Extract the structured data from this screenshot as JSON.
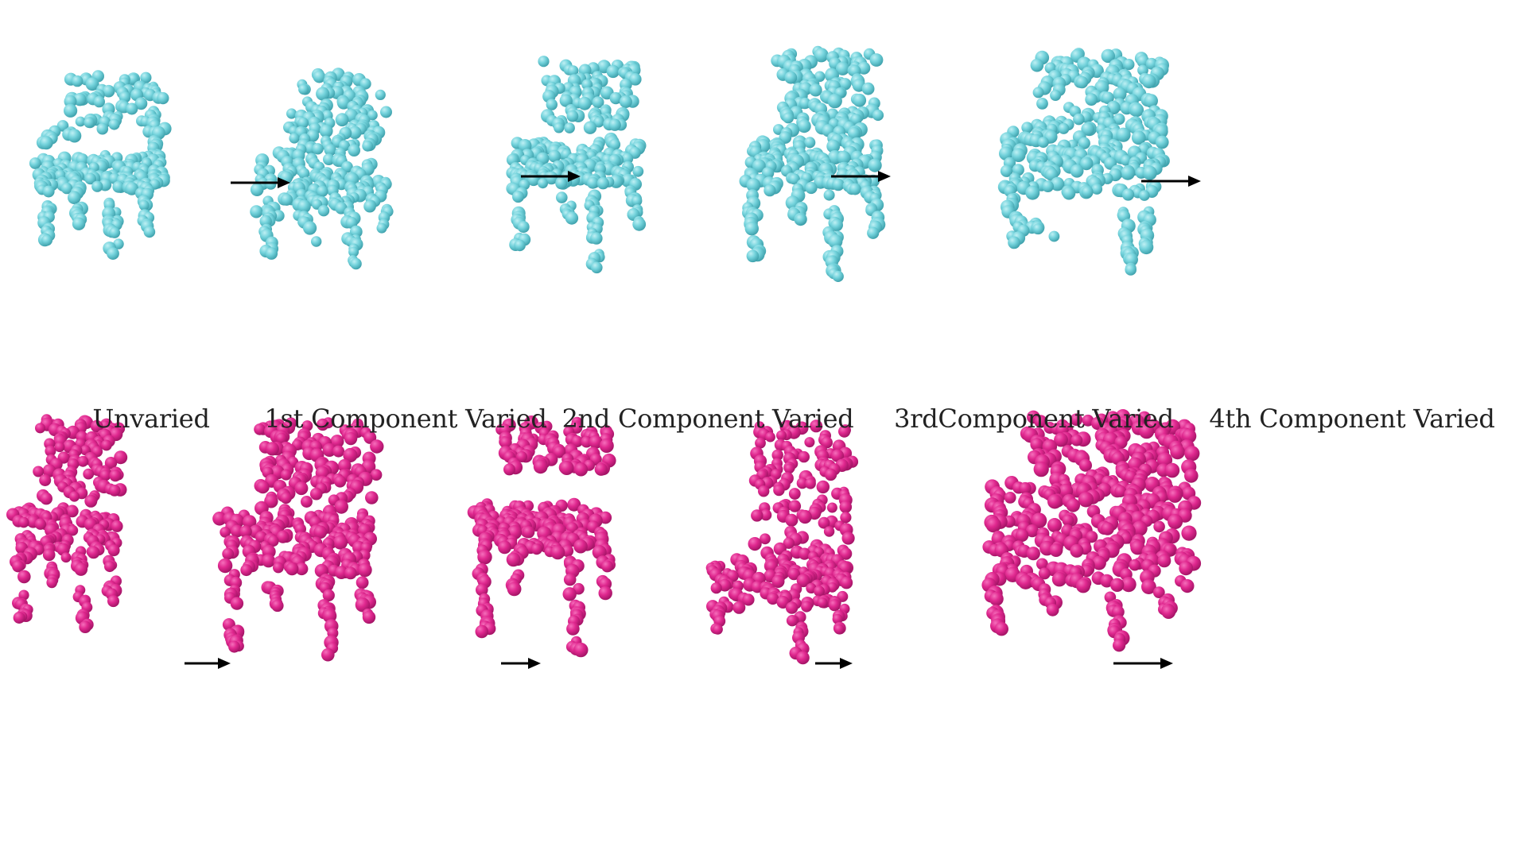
{
  "figure": {
    "top_row_color": "#74d3dc",
    "top_row_shade": "#3fa6b0",
    "bottom_row_color": "#e0288f",
    "bottom_row_shade": "#a8146a",
    "arrow_color": "#000000",
    "captions": [
      "Unvaried",
      "1st Component Varied",
      "2nd Component Varied",
      "3rdComponent Varied",
      "4th Component Varied"
    ],
    "top_row": [
      {
        "name": "chair-top-unvaried",
        "variant": "armchair"
      },
      {
        "name": "chair-top-component-1",
        "variant": "tilted"
      },
      {
        "name": "chair-top-component-2",
        "variant": "open-back"
      },
      {
        "name": "chair-top-component-3",
        "variant": "tall"
      },
      {
        "name": "chair-top-component-4",
        "variant": "wide-armchair"
      }
    ],
    "bottom_row": [
      {
        "name": "chair-bottom-unvaried",
        "variant": "side"
      },
      {
        "name": "chair-bottom-component-1",
        "variant": "wide"
      },
      {
        "name": "chair-bottom-component-2",
        "variant": "open-back"
      },
      {
        "name": "chair-bottom-component-3",
        "variant": "ladder-back"
      },
      {
        "name": "chair-bottom-component-4",
        "variant": "bulky"
      }
    ]
  }
}
